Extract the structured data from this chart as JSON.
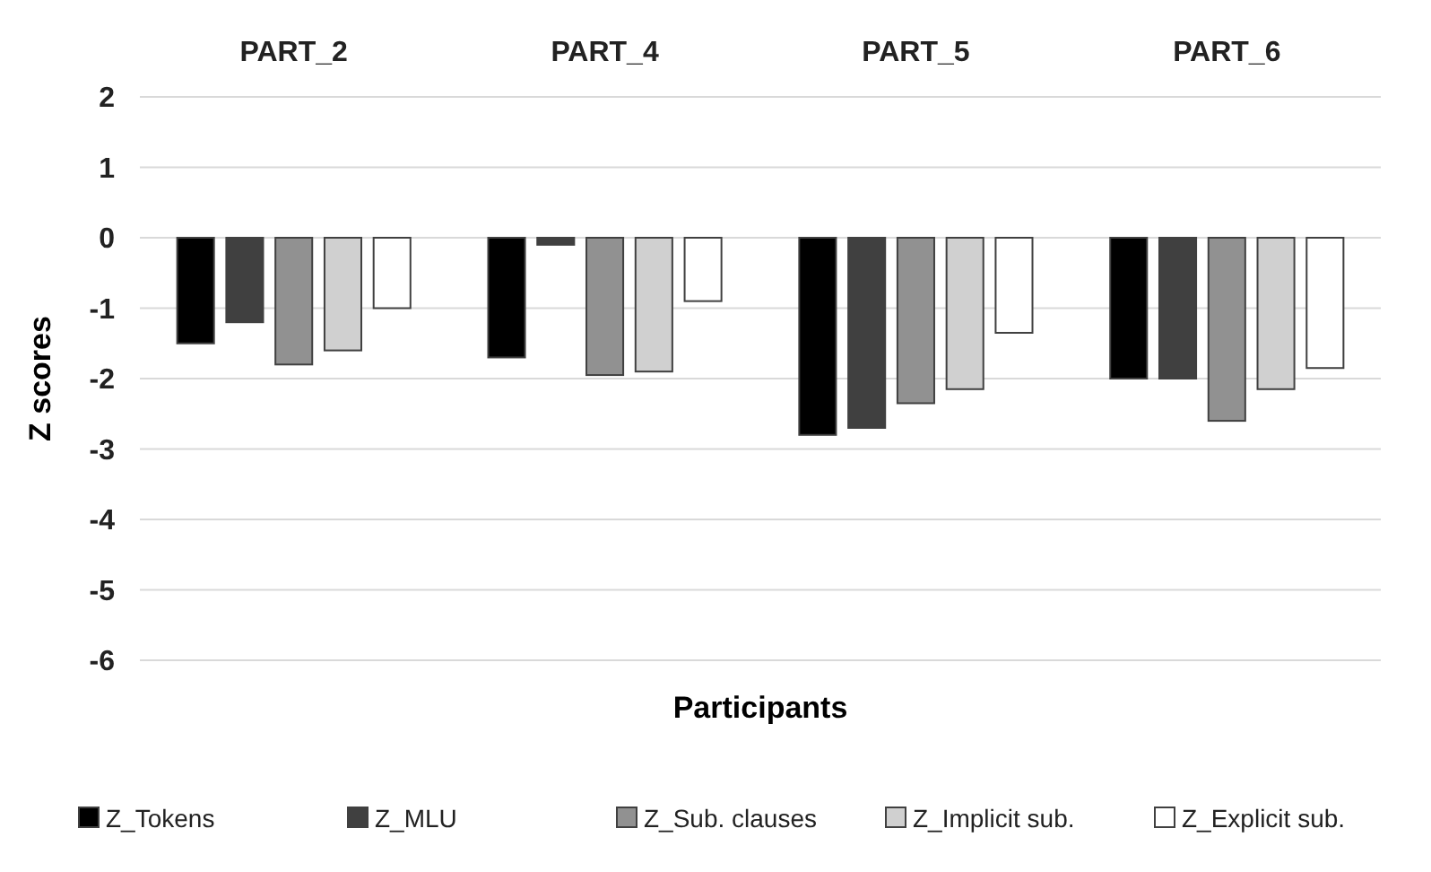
{
  "chart_data": {
    "type": "bar",
    "xlabel": "Participants",
    "ylabel": "Z scores",
    "categories": [
      "PART_2",
      "PART_4",
      "PART_5",
      "PART_6"
    ],
    "series": [
      {
        "name": "Z_Tokens",
        "color": "#000000",
        "values": [
          -1.5,
          -1.7,
          -2.8,
          -2.0
        ]
      },
      {
        "name": "Z_MLU",
        "color": "#404040",
        "values": [
          -1.2,
          -0.1,
          -2.7,
          -2.0
        ]
      },
      {
        "name": "Z_Sub. clauses",
        "color": "#919191",
        "values": [
          -1.8,
          -1.95,
          -2.35,
          -2.6
        ]
      },
      {
        "name": "Z_Implicit sub.",
        "color": "#d0d0d0",
        "values": [
          -1.6,
          -1.9,
          -2.15,
          -2.15
        ]
      },
      {
        "name": "Z_Explicit sub.",
        "color": "#ffffff",
        "values": [
          -1.0,
          -0.9,
          -1.35,
          -1.85
        ]
      }
    ],
    "ylim": [
      -6,
      2
    ],
    "yticks": [
      -6,
      -5,
      -4,
      -3,
      -2,
      -1,
      0,
      1,
      2
    ],
    "grid": "y",
    "legend": "bottom"
  }
}
